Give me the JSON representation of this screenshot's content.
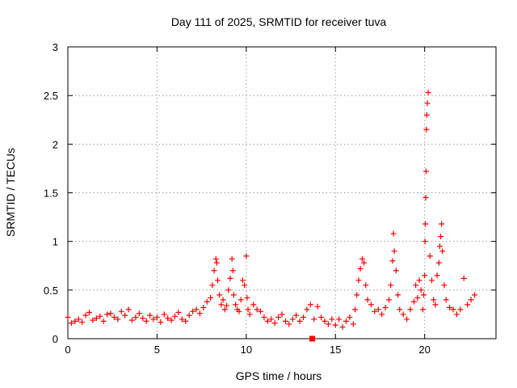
{
  "chart_data": {
    "type": "scatter",
    "title": "Day 111 of 2025, SRMTID for receiver tuva",
    "xlabel": "GPS time / hours",
    "ylabel": "SRMTID / TECUs",
    "xlim": [
      0,
      24
    ],
    "ylim": [
      0,
      3
    ],
    "xticks": [
      0,
      5,
      10,
      15,
      20
    ],
    "yticks": [
      0,
      0.5,
      1,
      1.5,
      2,
      2.5,
      3
    ],
    "ytick_labels": [
      "0",
      "0.5",
      "1",
      "1.5",
      "2",
      "2.5",
      "3"
    ],
    "grid": true,
    "marker": "plus",
    "color": "#ff0000",
    "special_point": {
      "x": 13.7,
      "y": 0.0,
      "marker": "square"
    },
    "series": [
      {
        "name": "SRMTID",
        "x": [
          0.0,
          0.2,
          0.4,
          0.6,
          0.8,
          1.0,
          1.2,
          1.4,
          1.6,
          1.8,
          2.0,
          2.2,
          2.4,
          2.6,
          2.8,
          3.0,
          3.2,
          3.4,
          3.6,
          3.8,
          4.0,
          4.2,
          4.4,
          4.6,
          4.8,
          5.0,
          5.2,
          5.4,
          5.6,
          5.8,
          6.0,
          6.2,
          6.4,
          6.6,
          6.8,
          7.0,
          7.2,
          7.4,
          7.6,
          7.8,
          8.0,
          8.1,
          8.2,
          8.3,
          8.35,
          8.4,
          8.5,
          8.6,
          8.7,
          8.8,
          8.9,
          9.0,
          9.1,
          9.2,
          9.25,
          9.3,
          9.4,
          9.5,
          9.6,
          9.7,
          9.8,
          9.9,
          10.0,
          10.05,
          10.1,
          10.2,
          10.4,
          10.6,
          10.8,
          11.0,
          11.2,
          11.4,
          11.6,
          11.8,
          12.0,
          12.2,
          12.4,
          12.6,
          12.8,
          13.0,
          13.2,
          13.4,
          13.6,
          13.8,
          14.0,
          14.2,
          14.4,
          14.6,
          14.8,
          15.0,
          15.2,
          15.4,
          15.6,
          15.8,
          16.0,
          16.1,
          16.2,
          16.3,
          16.4,
          16.5,
          16.6,
          16.7,
          16.8,
          17.0,
          17.2,
          17.4,
          17.6,
          17.8,
          18.0,
          18.1,
          18.2,
          18.25,
          18.3,
          18.4,
          18.5,
          18.6,
          18.8,
          19.0,
          19.2,
          19.4,
          19.5,
          19.6,
          19.7,
          19.8,
          19.9,
          19.95,
          20.0,
          20.02,
          20.04,
          20.06,
          20.08,
          20.1,
          20.12,
          20.15,
          20.2,
          20.3,
          20.4,
          20.5,
          20.6,
          20.7,
          20.8,
          20.85,
          20.9,
          20.95,
          21.0,
          21.1,
          21.2,
          21.4,
          21.6,
          21.8,
          22.0,
          22.2,
          22.4,
          22.6,
          22.8
        ],
        "y": [
          0.22,
          0.16,
          0.18,
          0.2,
          0.17,
          0.24,
          0.27,
          0.19,
          0.21,
          0.23,
          0.18,
          0.25,
          0.26,
          0.22,
          0.2,
          0.28,
          0.24,
          0.3,
          0.19,
          0.22,
          0.26,
          0.21,
          0.18,
          0.24,
          0.2,
          0.22,
          0.17,
          0.25,
          0.21,
          0.19,
          0.23,
          0.27,
          0.2,
          0.18,
          0.24,
          0.28,
          0.3,
          0.26,
          0.32,
          0.38,
          0.42,
          0.55,
          0.7,
          0.82,
          0.78,
          0.6,
          0.45,
          0.35,
          0.4,
          0.3,
          0.34,
          0.5,
          0.62,
          0.82,
          0.7,
          0.45,
          0.35,
          0.3,
          0.28,
          0.4,
          0.6,
          0.55,
          0.85,
          0.42,
          0.3,
          0.25,
          0.35,
          0.3,
          0.28,
          0.22,
          0.18,
          0.2,
          0.16,
          0.22,
          0.25,
          0.18,
          0.15,
          0.2,
          0.24,
          0.18,
          0.22,
          0.3,
          0.35,
          0.2,
          0.33,
          0.22,
          0.18,
          0.15,
          0.2,
          0.14,
          0.2,
          0.12,
          0.18,
          0.22,
          0.15,
          0.3,
          0.45,
          0.6,
          0.72,
          0.82,
          0.78,
          0.55,
          0.4,
          0.35,
          0.28,
          0.3,
          0.25,
          0.32,
          0.4,
          0.55,
          0.8,
          1.08,
          0.9,
          0.7,
          0.45,
          0.3,
          0.25,
          0.2,
          0.3,
          0.38,
          0.55,
          0.42,
          0.6,
          0.5,
          0.3,
          0.45,
          0.65,
          1.0,
          1.18,
          1.45,
          1.72,
          2.15,
          2.3,
          2.42,
          2.53,
          0.85,
          0.6,
          0.4,
          0.35,
          0.65,
          0.78,
          0.95,
          1.05,
          1.18,
          0.9,
          0.55,
          0.4,
          0.32,
          0.3,
          0.25,
          0.3,
          0.62,
          0.35,
          0.4,
          0.45
        ]
      }
    ]
  }
}
